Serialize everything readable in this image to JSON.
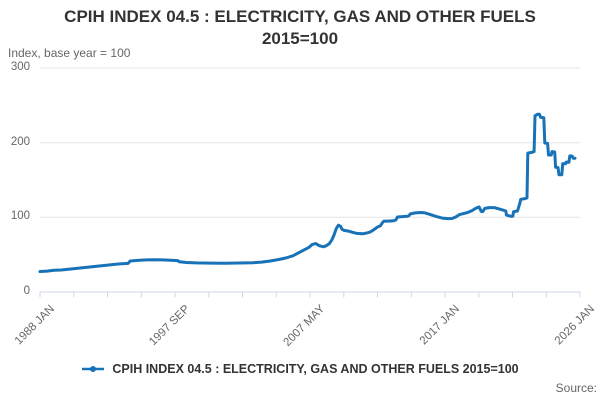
{
  "header": {
    "title": "CPIH INDEX 04.5 : ELECTRICITY, GAS AND OTHER FUELS 2015=100",
    "subtitle": "Index, base year = 100"
  },
  "legend": {
    "label": "CPIH INDEX 04.5 : ELECTRICITY, GAS AND OTHER FUELS 2015=100"
  },
  "source": {
    "label": "Source:"
  },
  "colors": {
    "line": "#1772b8",
    "grid": "#e6e6e6",
    "axis": "#ccd6eb",
    "title_text": "#333333",
    "label_text": "#666666"
  },
  "chart_data": {
    "type": "line",
    "title": "CPIH INDEX 04.5 : ELECTRICITY, GAS AND OTHER FUELS 2015=100",
    "subtitle": "Index, base year = 100",
    "legend_position": "bottom",
    "grid": "horizontal",
    "x_axis": {
      "min": 1988.0,
      "max": 2026.0,
      "tick_labels": [
        "1988 JAN",
        "1997 SEP",
        "2007 MAY",
        "2017 JAN",
        "2026 JAN"
      ],
      "minor_tick_count": 17
    },
    "y_axis": {
      "min": 0,
      "max": 300,
      "ticks": [
        0,
        100,
        200,
        300
      ],
      "label": "Index, base year = 100"
    },
    "series": [
      {
        "name": "CPIH INDEX 04.5 : ELECTRICITY, GAS AND OTHER FUELS 2015=100",
        "color": "#1772b8",
        "points": [
          [
            1988.0,
            27.5
          ],
          [
            1988.5,
            28
          ],
          [
            1989.0,
            29
          ],
          [
            1989.5,
            29.5
          ],
          [
            1990.0,
            30.5
          ],
          [
            1990.5,
            31.5
          ],
          [
            1991.0,
            32.5
          ],
          [
            1991.5,
            33.5
          ],
          [
            1992.0,
            34.5
          ],
          [
            1992.5,
            35.5
          ],
          [
            1993.0,
            36.5
          ],
          [
            1993.5,
            37.5
          ],
          [
            1994.2,
            38.3
          ],
          [
            1994.35,
            41.5
          ],
          [
            1995.0,
            42.5
          ],
          [
            1995.5,
            43
          ],
          [
            1996.0,
            43.2
          ],
          [
            1996.6,
            43
          ],
          [
            1997.2,
            42.5
          ],
          [
            1997.7,
            42
          ],
          [
            1997.8,
            40.5
          ],
          [
            1998.3,
            39.5
          ],
          [
            1999.0,
            39
          ],
          [
            2000.0,
            38.7
          ],
          [
            2001.0,
            38.6
          ],
          [
            2002.0,
            38.8
          ],
          [
            2003.0,
            39.2
          ],
          [
            2003.6,
            40
          ],
          [
            2004.2,
            41.5
          ],
          [
            2004.8,
            43.5
          ],
          [
            2005.3,
            45.5
          ],
          [
            2005.8,
            48.5
          ],
          [
            2006.2,
            52.5
          ],
          [
            2006.6,
            56.5
          ],
          [
            2006.9,
            59.5
          ],
          [
            2007.15,
            63.5
          ],
          [
            2007.4,
            65
          ],
          [
            2007.65,
            62
          ],
          [
            2007.95,
            60.5
          ],
          [
            2008.15,
            62
          ],
          [
            2008.35,
            64.5
          ],
          [
            2008.55,
            70
          ],
          [
            2008.7,
            77
          ],
          [
            2008.85,
            85
          ],
          [
            2009.0,
            89.5
          ],
          [
            2009.15,
            88
          ],
          [
            2009.25,
            84
          ],
          [
            2009.4,
            82.5
          ],
          [
            2009.7,
            81.5
          ],
          [
            2010.0,
            80
          ],
          [
            2010.3,
            78.5
          ],
          [
            2010.7,
            78
          ],
          [
            2011.0,
            79
          ],
          [
            2011.25,
            80.5
          ],
          [
            2011.5,
            83.5
          ],
          [
            2011.75,
            87
          ],
          [
            2011.95,
            88.5
          ],
          [
            2012.1,
            93
          ],
          [
            2012.2,
            95
          ],
          [
            2012.5,
            95
          ],
          [
            2012.9,
            95.5
          ],
          [
            2013.05,
            96.5
          ],
          [
            2013.15,
            100.5
          ],
          [
            2013.5,
            101
          ],
          [
            2013.85,
            101.5
          ],
          [
            2013.95,
            102
          ],
          [
            2014.05,
            104.5
          ],
          [
            2014.4,
            106
          ],
          [
            2014.8,
            106.5
          ],
          [
            2015.1,
            106
          ],
          [
            2015.5,
            103.5
          ],
          [
            2015.9,
            101
          ],
          [
            2016.3,
            99
          ],
          [
            2016.7,
            98.3
          ],
          [
            2017.0,
            98.5
          ],
          [
            2017.25,
            100.5
          ],
          [
            2017.5,
            103.5
          ],
          [
            2017.8,
            105
          ],
          [
            2018.1,
            106.5
          ],
          [
            2018.4,
            109
          ],
          [
            2018.65,
            112
          ],
          [
            2018.9,
            114
          ],
          [
            2019.05,
            108
          ],
          [
            2019.15,
            107.5
          ],
          [
            2019.3,
            112
          ],
          [
            2019.6,
            113
          ],
          [
            2019.95,
            113
          ],
          [
            2020.25,
            111.5
          ],
          [
            2020.6,
            109.5
          ],
          [
            2020.78,
            108.5
          ],
          [
            2020.83,
            103
          ],
          [
            2021.1,
            101.5
          ],
          [
            2021.27,
            101.5
          ],
          [
            2021.33,
            107.5
          ],
          [
            2021.6,
            108.5
          ],
          [
            2021.77,
            119
          ],
          [
            2021.83,
            124
          ],
          [
            2022.1,
            125
          ],
          [
            2022.27,
            126
          ],
          [
            2022.33,
            186
          ],
          [
            2022.6,
            187
          ],
          [
            2022.77,
            188
          ],
          [
            2022.83,
            236
          ],
          [
            2023.0,
            238
          ],
          [
            2023.15,
            238
          ],
          [
            2023.22,
            234
          ],
          [
            2023.45,
            233.5
          ],
          [
            2023.52,
            199.5
          ],
          [
            2023.72,
            199
          ],
          [
            2023.78,
            183.5
          ],
          [
            2023.98,
            183.5
          ],
          [
            2024.03,
            188
          ],
          [
            2024.22,
            187.5
          ],
          [
            2024.28,
            167
          ],
          [
            2024.45,
            166.8
          ],
          [
            2024.52,
            157
          ],
          [
            2024.72,
            157
          ],
          [
            2024.78,
            171.8
          ],
          [
            2024.98,
            171.7
          ],
          [
            2025.03,
            174
          ],
          [
            2025.22,
            173.7
          ],
          [
            2025.28,
            182.3
          ],
          [
            2025.45,
            182
          ],
          [
            2025.52,
            179
          ],
          [
            2025.65,
            179
          ]
        ]
      }
    ]
  }
}
